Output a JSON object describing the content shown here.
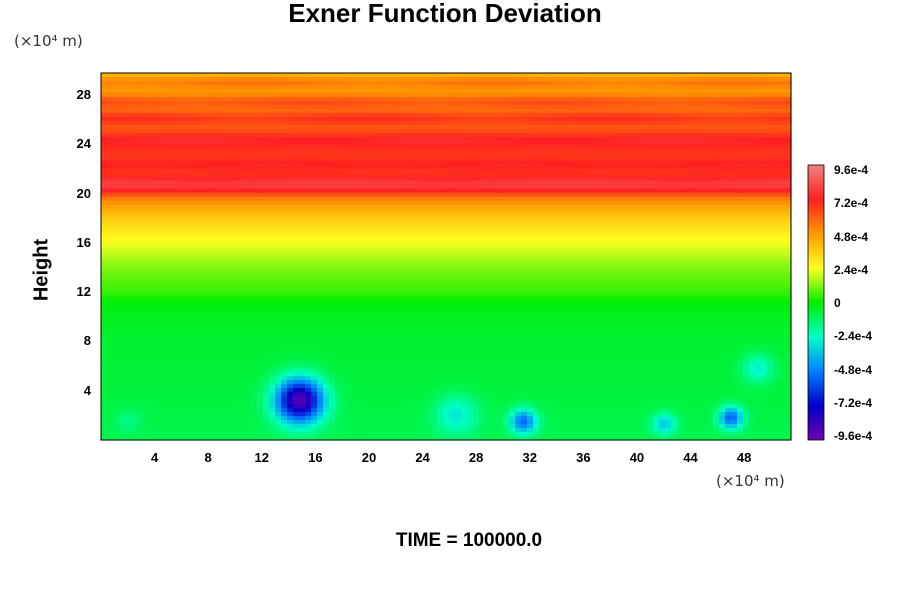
{
  "chart_data": {
    "type": "heatmap",
    "title": "Exner Function Deviation",
    "ylabel": "Height",
    "y_unit": "(×10⁴ m)",
    "x_unit": "(×10⁴ m)",
    "xlim": [
      0,
      51.5
    ],
    "ylim": [
      0,
      29.8
    ],
    "x_ticks": [
      "4",
      "8",
      "12",
      "16",
      "20",
      "24",
      "28",
      "32",
      "36",
      "40",
      "44",
      "48"
    ],
    "y_ticks": [
      "4",
      "8",
      "12",
      "16",
      "20",
      "24",
      "28"
    ],
    "colorbar": {
      "range": [
        -0.00096,
        0.00096
      ],
      "tick_labels": [
        "9.6e-4",
        "7.2e-4",
        "4.8e-4",
        "2.4e-4",
        "0",
        "-2.4e-4",
        "-4.8e-4",
        "-7.2e-4",
        "-9.6e-4"
      ],
      "colors": [
        "#f08080",
        "#ff2020",
        "#ff9a00",
        "#ffff20",
        "#00ee00",
        "#00ffc8",
        "#0080ff",
        "#0000c8",
        "#7000b0"
      ]
    },
    "vertical_profile": [
      {
        "y": 0.5,
        "value": -9e-05
      },
      {
        "y": 4,
        "value": -7e-05
      },
      {
        "y": 8,
        "value": -6e-05
      },
      {
        "y": 11,
        "value": -2e-05
      },
      {
        "y": 12,
        "value": 5e-05
      },
      {
        "y": 14,
        "value": 0.00012
      },
      {
        "y": 16,
        "value": 0.00023
      },
      {
        "y": 18,
        "value": 0.00036
      },
      {
        "y": 19.5,
        "value": 0.00052
      },
      {
        "y": 20.5,
        "value": 0.00074
      },
      {
        "y": 22,
        "value": 0.00064
      },
      {
        "y": 23.5,
        "value": 0.00068
      },
      {
        "y": 25,
        "value": 0.00062
      },
      {
        "y": 26.5,
        "value": 0.00054
      },
      {
        "y": 28,
        "value": 0.00048
      },
      {
        "y": 29.8,
        "value": 0.00038
      }
    ],
    "bands": [
      {
        "y": 20.8,
        "value": 0.0008
      },
      {
        "y": 22.3,
        "value": 0.00074
      },
      {
        "y": 24.3,
        "value": 0.00076
      },
      {
        "y": 26.1,
        "value": 0.0007
      },
      {
        "y": 27.4,
        "value": 0.00064
      },
      {
        "y": 29.0,
        "value": 0.00056
      }
    ],
    "anomalies": [
      {
        "x": 14.8,
        "y": 3.2,
        "value": -0.0009,
        "radius": 1.8
      },
      {
        "x": 26.5,
        "y": 2.0,
        "value": -0.00028,
        "radius": 1.6
      },
      {
        "x": 31.5,
        "y": 1.5,
        "value": -0.00052,
        "radius": 1.0
      },
      {
        "x": 42.0,
        "y": 1.3,
        "value": -0.00034,
        "radius": 0.9
      },
      {
        "x": 47.0,
        "y": 1.8,
        "value": -0.00054,
        "radius": 0.9
      },
      {
        "x": 49.0,
        "y": 5.8,
        "value": -0.00026,
        "radius": 1.2
      },
      {
        "x": 2.0,
        "y": 1.5,
        "value": -0.00016,
        "radius": 1.0
      }
    ]
  },
  "footer": {
    "time_label": "TIME = 100000.0"
  }
}
